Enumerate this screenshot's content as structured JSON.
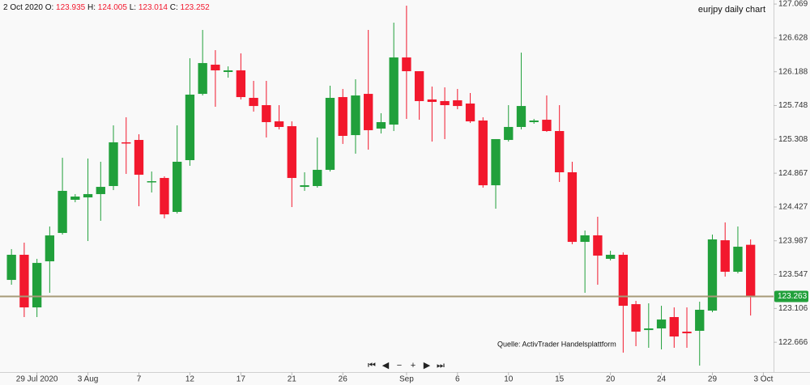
{
  "chart_data": {
    "type": "candlestick",
    "title": "eurjpy daily chart",
    "annotation": "Quelle: ActivTrader Handelsplattform",
    "header": {
      "date": "2 Oct 2020",
      "labels": [
        "O:",
        "H:",
        "L:",
        "C:"
      ]
    },
    "open": [
      123.478,
      123.805,
      123.12,
      123.72,
      124.089,
      124.521,
      124.552,
      124.595,
      124.7,
      125.269,
      125.3,
      124.753,
      124.805,
      124.363,
      125.037,
      125.9,
      126.28,
      126.185,
      126.206,
      125.848,
      125.753,
      125.542,
      125.479,
      124.689,
      124.7,
      124.911,
      125.858,
      125.363,
      125.9,
      125.448,
      125.5,
      126.374,
      126.195,
      125.827,
      125.806,
      125.816,
      125.774,
      125.553,
      124.71,
      125.3,
      125.469,
      125.532,
      125.563,
      125.416,
      124.879,
      123.973,
      124.058,
      123.752,
      123.805,
      123.162,
      122.825,
      122.846,
      122.994,
      122.804,
      122.815,
      123.078,
      123.994,
      123.584,
      123.935
    ],
    "high": [
      123.879,
      123.963,
      123.752,
      124.173,
      125.068,
      124.595,
      125.058,
      125.016,
      125.49,
      125.595,
      125.374,
      124.889,
      124.826,
      125.49,
      126.364,
      126.732,
      126.469,
      126.258,
      126.427,
      126.069,
      126.069,
      125.753,
      125.542,
      124.879,
      125.332,
      126.006,
      125.964,
      126.09,
      126.732,
      125.648,
      126.827,
      127.048,
      126.195,
      125.995,
      125.985,
      125.964,
      125.911,
      125.595,
      125.311,
      125.753,
      126.437,
      125.574,
      125.879,
      125.753,
      125.016,
      124.121,
      124.3,
      123.857,
      123.836,
      123.205,
      123.173,
      123.141,
      123.12,
      123.12,
      123.194,
      124.068,
      124.226,
      124.173,
      124.005
    ],
    "low": [
      123.415,
      122.994,
      122.994,
      123.31,
      124.068,
      124.489,
      123.984,
      124.247,
      124.647,
      124.858,
      124.437,
      124.616,
      124.279,
      124.342,
      124.963,
      125.879,
      125.732,
      126.111,
      125.827,
      125.669,
      125.332,
      125.437,
      124.426,
      124.637,
      124.679,
      124.889,
      125.248,
      125.121,
      125.174,
      125.384,
      125.416,
      125.574,
      125.563,
      125.279,
      125.311,
      125.7,
      125.521,
      124.679,
      124.405,
      125.279,
      125.437,
      125.511,
      125.405,
      124.753,
      123.942,
      123.31,
      123.415,
      123.731,
      122.531,
      122.615,
      122.594,
      122.573,
      122.594,
      122.594,
      122.362,
      123.057,
      123.521,
      123.563,
      123.014
    ],
    "close": [
      123.805,
      123.12,
      123.699,
      124.057,
      124.637,
      124.563,
      124.595,
      124.689,
      125.269,
      125.258,
      124.847,
      124.763,
      124.331,
      125.016,
      125.89,
      126.301,
      126.206,
      126.206,
      125.858,
      125.742,
      125.532,
      125.469,
      124.805,
      124.71,
      124.911,
      125.848,
      125.353,
      125.879,
      125.427,
      125.532,
      126.374,
      126.195,
      125.806,
      125.795,
      125.753,
      125.742,
      125.542,
      124.71,
      125.311,
      125.469,
      125.742,
      125.553,
      125.416,
      124.879,
      123.973,
      124.058,
      123.794,
      123.805,
      123.141,
      122.804,
      122.846,
      122.962,
      122.741,
      122.783,
      123.089,
      124.005,
      123.584,
      123.91,
      123.252
    ],
    "up_color": "#21a03b",
    "down_color": "#f2182d",
    "last_price": 123.263,
    "xlim": [
      -0.9,
      59.8
    ],
    "xticks": [
      {
        "value": 2,
        "label": "29 Jul 2020"
      },
      {
        "value": 6,
        "label": "3 Aug"
      },
      {
        "value": 10,
        "label": "7"
      },
      {
        "value": 14,
        "label": "12"
      },
      {
        "value": 18,
        "label": "17"
      },
      {
        "value": 22,
        "label": "21"
      },
      {
        "value": 26,
        "label": "26"
      },
      {
        "value": 31,
        "label": "Sep"
      },
      {
        "value": 35,
        "label": "6"
      },
      {
        "value": 39,
        "label": "10"
      },
      {
        "value": 43,
        "label": "15"
      },
      {
        "value": 47,
        "label": "20"
      },
      {
        "value": 51,
        "label": "24"
      },
      {
        "value": 55,
        "label": "29"
      },
      {
        "value": 59,
        "label": "3 Oct"
      }
    ],
    "ylim": [
      122.278,
      127.122
    ],
    "yticks": [
      127.069,
      126.628,
      126.188,
      125.748,
      125.308,
      124.867,
      124.427,
      123.987,
      123.547,
      123.106,
      122.666
    ]
  }
}
